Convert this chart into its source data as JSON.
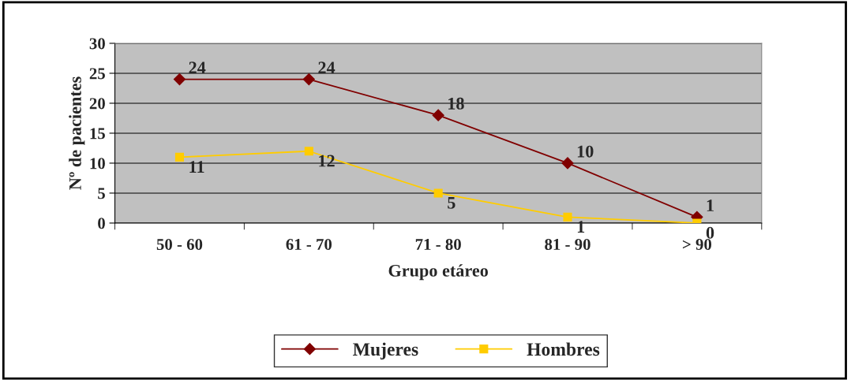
{
  "chart_data": {
    "type": "line",
    "xlabel": "Grupo etáreo",
    "ylabel": "Nº de pacientes",
    "categories": [
      "50 - 60",
      "61 - 70",
      "71 - 80",
      "81 - 90",
      "> 90"
    ],
    "series": [
      {
        "name": "Mujeres",
        "color": "#800000",
        "marker": "diamond",
        "values": [
          24,
          24,
          18,
          10,
          1
        ]
      },
      {
        "name": "Hombres",
        "color": "#ffcc00",
        "marker": "square",
        "values": [
          11,
          12,
          5,
          1,
          0
        ]
      }
    ],
    "ylim": [
      0,
      30
    ],
    "yticks": [
      0,
      5,
      10,
      15,
      20,
      25,
      30
    ],
    "grid": "y",
    "legend": "bottom",
    "data_labels": true,
    "line_style": "solid"
  }
}
